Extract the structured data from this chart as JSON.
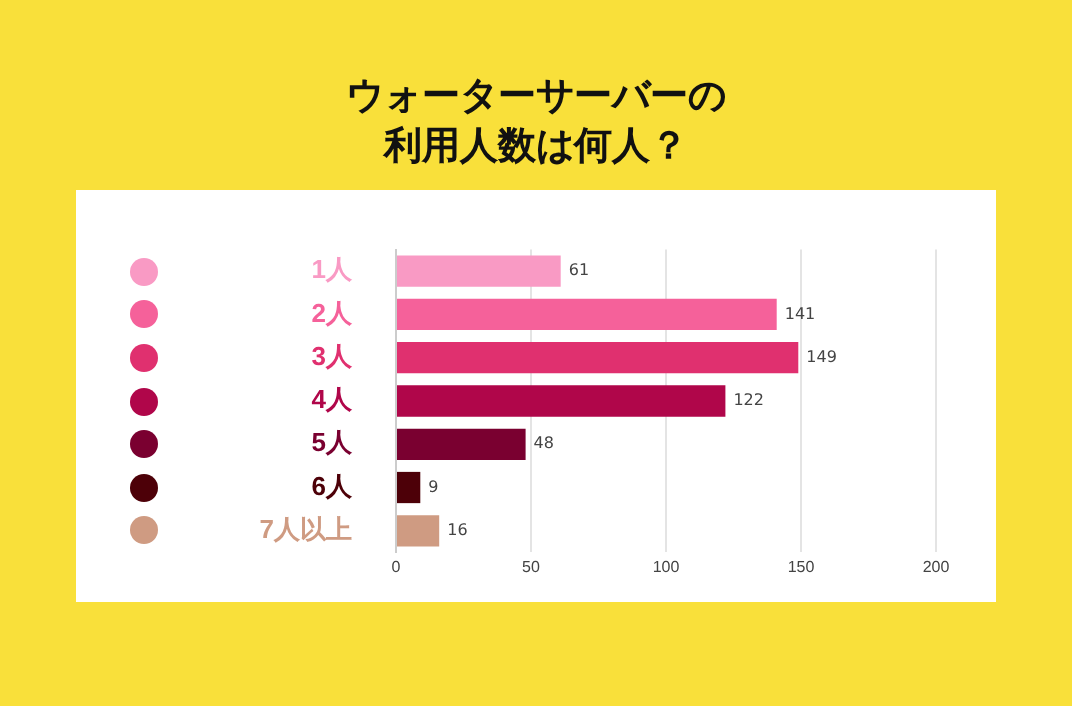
{
  "chart_data": {
    "type": "bar",
    "orientation": "horizontal",
    "title": "ウォーターサーバーの利用人数は何人？",
    "categories": [
      "1人",
      "2人",
      "3人",
      "4人",
      "5人",
      "6人",
      "7人以上"
    ],
    "values": [
      61,
      141,
      149,
      122,
      48,
      9,
      16
    ],
    "colors": [
      "#f99ac4",
      "#f5619a",
      "#e0306f",
      "#b0064a",
      "#7a0030",
      "#4d0008",
      "#cf9b82"
    ],
    "xlim": [
      0,
      200
    ],
    "xticks": [
      0,
      50,
      100,
      150,
      200
    ],
    "grid": "x",
    "data_labels": true,
    "legend": false
  }
}
